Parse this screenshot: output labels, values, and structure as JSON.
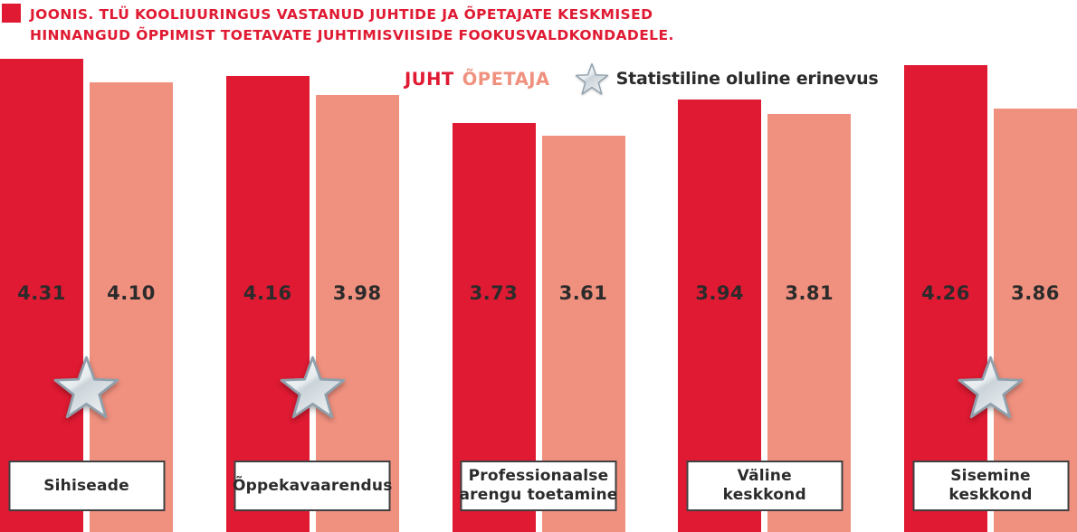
{
  "header": {
    "title_line1": "JOONIS. TLÜ KOOLIUURINGUS VASTANUD JUHTIDE JA ÕPETAJATE KESKMISED",
    "title_line2": "HINNANGUD ÕPPIMIST TOETAVATE JUHTIMISVIISIDE FOOKUSVALDKONDADELE."
  },
  "legend": {
    "juht_label": "JUHT",
    "opetaja_label": "ÕPETAJA",
    "star_label": "Statistiline oluline erinevus"
  },
  "colors": {
    "juht": "#DF1A32",
    "opetaja": "#F0917F",
    "value_text": "#2B2B2B",
    "label_border": "#414042",
    "title_text": "#DF1A32"
  },
  "chart_data": {
    "type": "bar",
    "title": "JOONIS. TLÜ KOOLIUURINGUS VASTANUD JUHTIDE JA ÕPETAJATE KESKMISED HINNANGUD ÕPPIMIST TOETAVATE JUHTIMISVIISIDE FOOKUSVALDKONDADELE.",
    "categories": [
      "Sihiseade",
      "Õppekavaarendus",
      "Professionaalse arengu toetamine",
      "Väline keskkond",
      "Sisemine keskkond"
    ],
    "category_label_lines": [
      [
        "Sihiseade"
      ],
      [
        "Õppekavaarendus"
      ],
      [
        "Professionaalse",
        "arengu toetamine"
      ],
      [
        "Väline",
        "keskkond"
      ],
      [
        "Sisemine",
        "keskkond"
      ]
    ],
    "series": [
      {
        "name": "JUHT",
        "color": "#DF1A32",
        "values": [
          4.31,
          4.16,
          3.73,
          3.94,
          4.26
        ],
        "labels": [
          "4.31",
          "4.16",
          "3.73",
          "3.94",
          "4.26"
        ]
      },
      {
        "name": "ÕPETAJA",
        "color": "#F0917F",
        "values": [
          4.1,
          3.98,
          3.61,
          3.81,
          3.86
        ],
        "labels": [
          "4.10",
          "3.98",
          "3.61",
          "3.81",
          "3.86"
        ]
      }
    ],
    "significant_difference": [
      true,
      true,
      false,
      false,
      true
    ],
    "significance_marker": "silver star between bar pair",
    "value_labels_visible": true,
    "xlabel": "",
    "ylabel": "",
    "ylim": [
      0,
      4.85
    ],
    "grid": false,
    "axes_visible": false,
    "legend_position": "top-center"
  }
}
